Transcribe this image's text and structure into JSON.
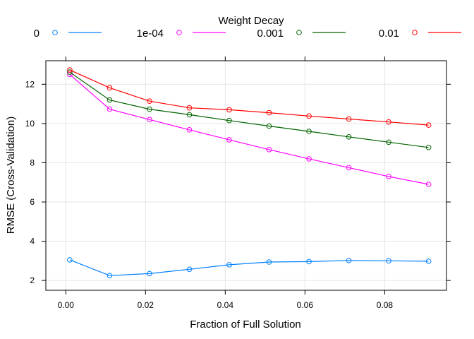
{
  "chart_data": {
    "type": "line",
    "xlabel": "Fraction of Full Solution",
    "ylabel": "RMSE (Cross-Validation)",
    "legend_title": "Weight Decay",
    "legend_position": "top",
    "grid": true,
    "xlim": [
      -0.005,
      0.0955
    ],
    "ylim": [
      1.5,
      13.2
    ],
    "x_ticks": [
      0.0,
      0.02,
      0.04,
      0.06,
      0.08
    ],
    "x_tick_labels": [
      "0.00",
      "0.02",
      "0.04",
      "0.06",
      "0.08"
    ],
    "y_ticks": [
      2,
      4,
      6,
      8,
      10,
      12
    ],
    "y_tick_labels": [
      "2",
      "4",
      "6",
      "8",
      "10",
      "12"
    ],
    "x": [
      0.001,
      0.011,
      0.021,
      0.031,
      0.041,
      0.051,
      0.061,
      0.071,
      0.081,
      0.091
    ],
    "series": [
      {
        "name": "0",
        "color": "#0080ff",
        "values": [
          3.05,
          2.25,
          2.35,
          2.57,
          2.8,
          2.94,
          2.96,
          3.02,
          3.0,
          2.98
        ]
      },
      {
        "name": "1e-04",
        "color": "#ff00ff",
        "values": [
          12.5,
          10.73,
          10.2,
          9.68,
          9.17,
          8.67,
          8.2,
          7.75,
          7.3,
          6.9
        ]
      },
      {
        "name": "0.001",
        "color": "#006400",
        "values": [
          12.62,
          11.2,
          10.73,
          10.45,
          10.15,
          9.87,
          9.6,
          9.32,
          9.05,
          8.78
        ]
      },
      {
        "name": "0.01",
        "color": "#ff0000",
        "values": [
          12.73,
          11.82,
          11.14,
          10.8,
          10.7,
          10.55,
          10.38,
          10.23,
          10.08,
          9.92
        ]
      }
    ]
  }
}
